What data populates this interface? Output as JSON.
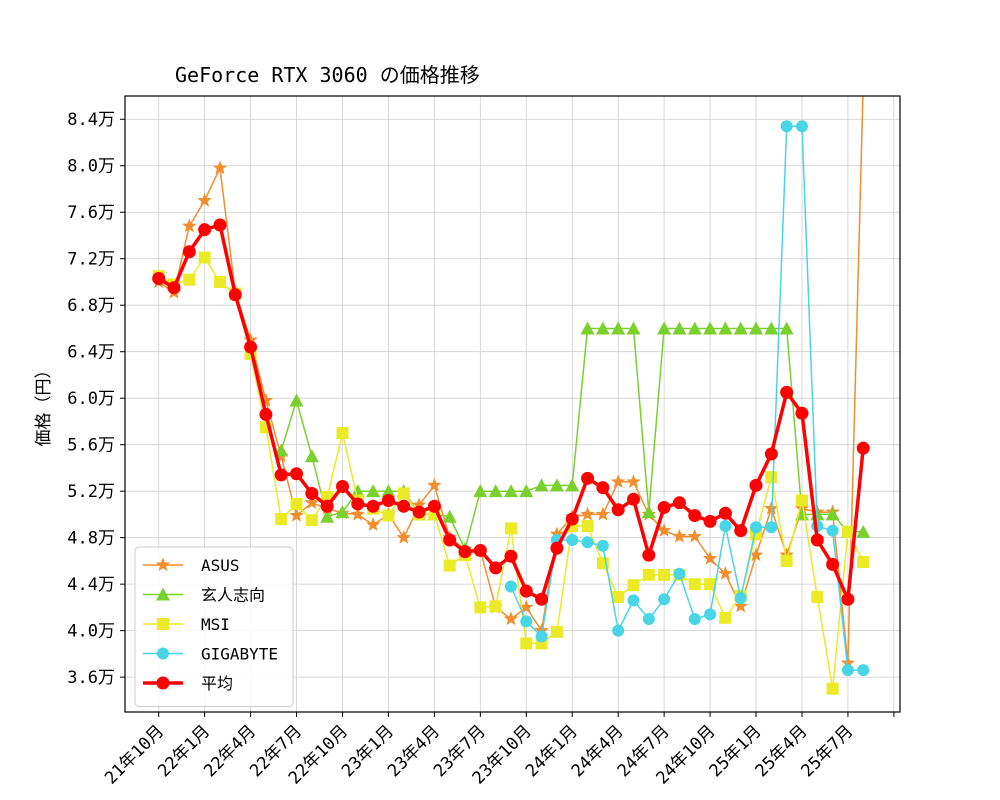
{
  "chart_data": {
    "type": "line",
    "title": "GeForce RTX 3060 の価格推移",
    "xlabel": "",
    "ylabel": "価格（円）",
    "grid": true,
    "legend_position": "lower-left",
    "ylim": [
      3.3,
      8.6
    ],
    "xlim": [
      -2.2,
      48.4
    ],
    "x_ticks": [
      {
        "x": 0,
        "label": "21年10月"
      },
      {
        "x": 3,
        "label": "22年1月"
      },
      {
        "x": 6,
        "label": "22年4月"
      },
      {
        "x": 9,
        "label": "22年7月"
      },
      {
        "x": 12,
        "label": "22年10月"
      },
      {
        "x": 15,
        "label": "23年1月"
      },
      {
        "x": 18,
        "label": "23年4月"
      },
      {
        "x": 21,
        "label": "23年7月"
      },
      {
        "x": 24,
        "label": "23年10月"
      },
      {
        "x": 27,
        "label": "24年1月"
      },
      {
        "x": 30,
        "label": "24年4月"
      },
      {
        "x": 33,
        "label": "24年7月"
      },
      {
        "x": 36,
        "label": "24年10月"
      },
      {
        "x": 39,
        "label": "25年1月"
      },
      {
        "x": 42,
        "label": "25年4月"
      },
      {
        "x": 45,
        "label": "25年7月"
      },
      {
        "x": 48,
        "label": ""
      }
    ],
    "y_ticks": [
      {
        "y": 3.6,
        "label": "3.6万"
      },
      {
        "y": 4.0,
        "label": "4.0万"
      },
      {
        "y": 4.4,
        "label": "4.4万"
      },
      {
        "y": 4.8,
        "label": "4.8万"
      },
      {
        "y": 5.2,
        "label": "5.2万"
      },
      {
        "y": 5.6,
        "label": "5.6万"
      },
      {
        "y": 6.0,
        "label": "6.0万"
      },
      {
        "y": 6.4,
        "label": "6.4万"
      },
      {
        "y": 6.8,
        "label": "6.8万"
      },
      {
        "y": 7.2,
        "label": "7.2万"
      },
      {
        "y": 7.6,
        "label": "7.6万"
      },
      {
        "y": 8.0,
        "label": "8.0万"
      },
      {
        "y": 8.4,
        "label": "8.4万"
      }
    ],
    "series": [
      {
        "name": "ASUS",
        "color": "#f28e2b",
        "marker": "star",
        "points": [
          [
            0,
            7.0
          ],
          [
            1,
            6.91
          ],
          [
            2,
            7.48
          ],
          [
            3,
            7.7
          ],
          [
            4,
            7.98
          ],
          [
            5,
            6.91
          ],
          [
            6,
            6.5
          ],
          [
            7,
            5.98
          ],
          [
            8,
            5.5
          ],
          [
            9,
            4.99
          ],
          [
            10,
            5.1
          ],
          [
            11,
            5.05
          ],
          [
            12,
            5.01
          ],
          [
            13,
            5.0
          ],
          [
            14,
            4.91
          ],
          [
            15,
            5.0
          ],
          [
            16,
            4.8
          ],
          [
            17,
            5.08
          ],
          [
            18,
            5.25
          ],
          [
            19,
            4.8
          ],
          [
            20,
            4.7
          ],
          [
            21,
            4.69
          ],
          [
            22,
            4.2
          ],
          [
            23,
            4.1
          ],
          [
            24,
            4.2
          ],
          [
            25,
            4.0
          ],
          [
            26,
            4.83
          ],
          [
            27,
            4.98
          ],
          [
            28,
            5.0
          ],
          [
            29,
            5.0
          ],
          [
            30,
            5.28
          ],
          [
            31,
            5.28
          ],
          [
            32,
            5.0
          ],
          [
            33,
            4.86
          ],
          [
            34,
            4.81
          ],
          [
            35,
            4.81
          ],
          [
            36,
            4.62
          ],
          [
            37,
            4.49
          ],
          [
            38,
            4.21
          ],
          [
            39,
            4.65
          ],
          [
            40,
            5.05
          ],
          [
            41,
            4.65
          ],
          [
            42,
            5.05
          ],
          [
            43,
            5.02
          ],
          [
            44,
            5.02
          ],
          [
            45,
            3.72
          ],
          [
            46,
            8.7
          ]
        ]
      },
      {
        "name": "玄人志向",
        "color": "#7ad12e",
        "marker": "triangle",
        "points": [
          [
            8,
            5.55
          ],
          [
            9,
            5.98
          ],
          [
            10,
            5.5
          ],
          [
            11,
            4.98
          ],
          [
            12,
            5.02
          ],
          [
            13,
            5.2
          ],
          [
            14,
            5.2
          ],
          [
            15,
            5.2
          ],
          [
            16,
            5.2
          ],
          [
            17,
            5.0
          ],
          [
            18,
            5.0
          ],
          [
            19,
            4.98
          ],
          [
            20,
            4.7
          ],
          [
            21,
            5.2
          ],
          [
            22,
            5.2
          ],
          [
            23,
            5.2
          ],
          [
            24,
            5.2
          ],
          [
            25,
            5.25
          ],
          [
            26,
            5.25
          ],
          [
            27,
            5.25
          ],
          [
            28,
            6.6
          ],
          [
            29,
            6.6
          ],
          [
            30,
            6.6
          ],
          [
            31,
            6.6
          ],
          [
            32,
            5.02
          ],
          [
            33,
            6.6
          ],
          [
            34,
            6.6
          ],
          [
            35,
            6.6
          ],
          [
            36,
            6.6
          ],
          [
            37,
            6.6
          ],
          [
            38,
            6.6
          ],
          [
            39,
            6.6
          ],
          [
            40,
            6.6
          ],
          [
            41,
            6.6
          ],
          [
            42,
            5.0
          ],
          [
            43,
            5.0
          ],
          [
            44,
            5.0
          ],
          [
            45,
            4.85
          ],
          [
            46,
            4.85
          ]
        ]
      },
      {
        "name": "MSI",
        "color": "#eaea27",
        "marker": "square",
        "points": [
          [
            0,
            7.05
          ],
          [
            1,
            6.98
          ],
          [
            2,
            7.02
          ],
          [
            3,
            7.21
          ],
          [
            4,
            7.0
          ],
          [
            5,
            6.9
          ],
          [
            6,
            6.38
          ],
          [
            7,
            5.75
          ],
          [
            8,
            4.96
          ],
          [
            9,
            5.09
          ],
          [
            10,
            4.95
          ],
          [
            11,
            5.15
          ],
          [
            12,
            5.7
          ],
          [
            13,
            5.12
          ],
          [
            14,
            5.05
          ],
          [
            15,
            4.99
          ],
          [
            16,
            5.18
          ],
          [
            17,
            5.0
          ],
          [
            18,
            5.0
          ],
          [
            19,
            4.56
          ],
          [
            20,
            4.65
          ],
          [
            21,
            4.2
          ],
          [
            22,
            4.21
          ],
          [
            23,
            4.88
          ],
          [
            24,
            3.89
          ],
          [
            25,
            3.89
          ],
          [
            26,
            3.99
          ],
          [
            27,
            4.9
          ],
          [
            28,
            4.9
          ],
          [
            29,
            4.58
          ],
          [
            30,
            4.29
          ],
          [
            31,
            4.39
          ],
          [
            32,
            4.48
          ],
          [
            33,
            4.48
          ],
          [
            34,
            4.48
          ],
          [
            35,
            4.4
          ],
          [
            36,
            4.4
          ],
          [
            37,
            4.11
          ],
          [
            38,
            4.3
          ],
          [
            39,
            4.83
          ],
          [
            40,
            5.32
          ],
          [
            41,
            4.6
          ],
          [
            42,
            5.12
          ],
          [
            43,
            4.29
          ],
          [
            44,
            3.5
          ],
          [
            45,
            4.85
          ],
          [
            46,
            4.59
          ]
        ]
      },
      {
        "name": "GIGABYTE",
        "color": "#48d6e6",
        "marker": "circle",
        "points": [
          [
            23,
            4.38
          ],
          [
            24,
            4.08
          ],
          [
            25,
            3.95
          ],
          [
            26,
            4.78
          ],
          [
            27,
            4.78
          ],
          [
            28,
            4.76
          ],
          [
            29,
            4.73
          ],
          [
            30,
            4.0
          ],
          [
            31,
            4.26
          ],
          [
            32,
            4.1
          ],
          [
            33,
            4.27
          ],
          [
            34,
            4.49
          ],
          [
            35,
            4.1
          ],
          [
            36,
            4.14
          ],
          [
            37,
            4.9
          ],
          [
            38,
            4.28
          ],
          [
            39,
            4.89
          ],
          [
            40,
            4.89
          ],
          [
            41,
            8.34
          ],
          [
            42,
            8.34
          ],
          [
            43,
            4.9
          ],
          [
            44,
            4.86
          ],
          [
            45,
            3.66
          ],
          [
            46,
            3.66
          ]
        ]
      },
      {
        "name": "平均",
        "color": "#ff0000",
        "marker": "circle",
        "thick": true,
        "points": [
          [
            0,
            7.03
          ],
          [
            1,
            6.95
          ],
          [
            2,
            7.26
          ],
          [
            3,
            7.45
          ],
          [
            4,
            7.49
          ],
          [
            5,
            6.89
          ],
          [
            6,
            6.44
          ],
          [
            7,
            5.86
          ],
          [
            8,
            5.34
          ],
          [
            9,
            5.35
          ],
          [
            10,
            5.18
          ],
          [
            11,
            5.07
          ],
          [
            12,
            5.24
          ],
          [
            13,
            5.09
          ],
          [
            14,
            5.07
          ],
          [
            15,
            5.12
          ],
          [
            16,
            5.07
          ],
          [
            17,
            5.02
          ],
          [
            18,
            5.07
          ],
          [
            19,
            4.78
          ],
          [
            20,
            4.68
          ],
          [
            21,
            4.69
          ],
          [
            22,
            4.54
          ],
          [
            23,
            4.64
          ],
          [
            24,
            4.34
          ],
          [
            25,
            4.27
          ],
          [
            26,
            4.71
          ],
          [
            27,
            4.96
          ],
          [
            28,
            5.31
          ],
          [
            29,
            5.23
          ],
          [
            30,
            5.04
          ],
          [
            31,
            5.13
          ],
          [
            32,
            4.65
          ],
          [
            33,
            5.06
          ],
          [
            34,
            5.1
          ],
          [
            35,
            4.99
          ],
          [
            36,
            4.94
          ],
          [
            37,
            5.01
          ],
          [
            38,
            4.86
          ],
          [
            39,
            5.25
          ],
          [
            40,
            5.52
          ],
          [
            41,
            6.05
          ],
          [
            42,
            5.87
          ],
          [
            43,
            4.78
          ],
          [
            44,
            4.57
          ],
          [
            45,
            4.27
          ],
          [
            46,
            5.57
          ]
        ]
      }
    ]
  }
}
